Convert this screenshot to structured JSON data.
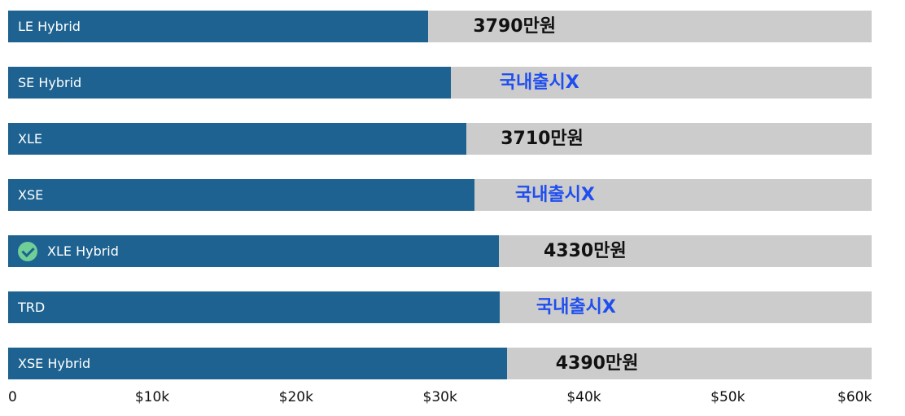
{
  "chart_data": {
    "type": "bar",
    "orientation": "horizontal",
    "categories": [
      "LE Hybrid",
      "SE Hybrid",
      "XLE",
      "XSE",
      "XLE Hybrid",
      "TRD",
      "XSE Hybrid"
    ],
    "values": [
      29200,
      30750,
      31850,
      32400,
      34100,
      34150,
      34650
    ],
    "annotations": [
      "3790만원",
      "국내출시X",
      "3710만원",
      "국내출시X",
      "4330만원",
      "국내출시X",
      "4390만원"
    ],
    "highlighted": [
      "XLE Hybrid"
    ],
    "xlim": [
      0,
      60000
    ],
    "x_ticks": [
      "0",
      "$10k",
      "$20k",
      "$30k",
      "$40k",
      "$50k",
      "$60k"
    ],
    "grid": false,
    "title": "",
    "xlabel": "",
    "ylabel": ""
  },
  "colors": {
    "bar": "#1d6290",
    "track": "#cccccc",
    "price_note": "#111111",
    "unavailable_note": "#1f4ef0",
    "check": "#6fcf97"
  }
}
